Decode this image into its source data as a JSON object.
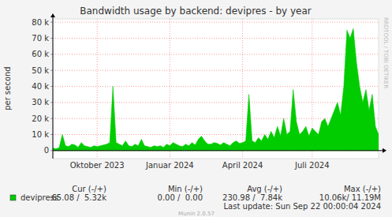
{
  "chart_data": {
    "type": "area",
    "title": "Bandwidth usage by backend: devipres - by year",
    "y_label": "per second",
    "side_label": "RRDTOOL / TOBI OETIKER",
    "last_update": "Last update: Sun Sep 22 00:00:04 2024",
    "footer": "Munin 2.0.57",
    "grid": true,
    "categories": [
      null,
      null,
      null,
      null,
      null,
      null,
      null,
      null,
      null,
      null,
      null,
      null,
      null,
      null,
      "Oktober 2023",
      null,
      null,
      null,
      null,
      null,
      null,
      null,
      null,
      null,
      null,
      null,
      null,
      null,
      null,
      null,
      null,
      null,
      null,
      null,
      null,
      null,
      null,
      "Januar 2024",
      null,
      null,
      null,
      null,
      null,
      null,
      null,
      null,
      null,
      null,
      null,
      null,
      null,
      null,
      null,
      null,
      null,
      null,
      null,
      null,
      null,
      null,
      "April 2024",
      null,
      null,
      null,
      null,
      null,
      null,
      null,
      null,
      null,
      null,
      null,
      null,
      null,
      null,
      null,
      null,
      null,
      null,
      null,
      null,
      null,
      "Juli 2024",
      null,
      null,
      null,
      null,
      null,
      null,
      null,
      null,
      null,
      null,
      null,
      null,
      null,
      null,
      null,
      null,
      null,
      null,
      null,
      null,
      null
    ],
    "series": [
      {
        "name": "devipress",
        "color": "#00cc00",
        "values": [
          1500,
          1200,
          1800,
          10000,
          3000,
          2500,
          4000,
          3500,
          2000,
          5000,
          3000,
          2500,
          2000,
          3000,
          2500,
          3000,
          3500,
          4000,
          5000,
          40000,
          5000,
          4000,
          3000,
          6000,
          3000,
          2500,
          4000,
          3000,
          7000,
          3000,
          2500,
          2000,
          3000,
          2500,
          3000,
          2000,
          4000,
          3000,
          5000,
          4000,
          3000,
          2500,
          4000,
          3000,
          5000,
          3500,
          7000,
          9000,
          6000,
          4000,
          4000,
          5000,
          4500,
          3500,
          5000,
          4000,
          3000,
          5000,
          6000,
          4500,
          5000,
          6000,
          35000,
          6000,
          5000,
          8000,
          6000,
          10000,
          7000,
          12000,
          8000,
          15000,
          9000,
          20000,
          10000,
          12000,
          38000,
          18000,
          10000,
          12000,
          15000,
          9000,
          14000,
          12000,
          10000,
          18000,
          20000,
          15000,
          20000,
          25000,
          30000,
          22000,
          40000,
          75000,
          70000,
          76000,
          55000,
          40000,
          30000,
          38000,
          25000,
          35000,
          15000,
          10000
        ]
      }
    ],
    "ylim": [
      -5000,
      82000
    ],
    "yticks": [
      0,
      {
        "value": 10000,
        "label": "10 k"
      },
      {
        "value": 20000,
        "label": "20 k"
      },
      {
        "value": 30000,
        "label": "30 k"
      },
      {
        "value": 40000,
        "label": "40 k"
      },
      {
        "value": 50000,
        "label": "50 k"
      },
      {
        "value": 60000,
        "label": "60 k"
      },
      {
        "value": 70000,
        "label": "70 k"
      },
      {
        "value": 80000,
        "label": "80 k"
      }
    ],
    "legend_table": {
      "headers": [
        "Cur (-/+)",
        "Min (-/+)",
        "Avg (-/+)",
        "Max (-/+)"
      ],
      "rows": [
        {
          "name": "devipress",
          "cells": [
            "65.08 /  5.32k",
            "0.00 /  0.00",
            "230.98 /  7.84k",
            "10.06k/ 11.19M"
          ]
        }
      ]
    }
  }
}
